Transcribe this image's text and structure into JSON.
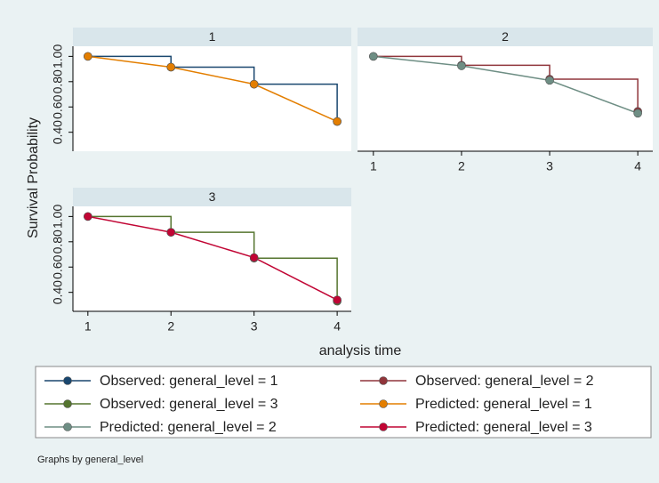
{
  "y_label": "Survival Probability",
  "x_label": "analysis time",
  "note": "Graphs by general_level",
  "chart_data": [
    {
      "type": "line",
      "title": "1",
      "x": [
        1,
        2,
        3,
        4
      ],
      "xlim": [
        0.82,
        4.17
      ],
      "ylim": [
        0.25,
        1.08
      ],
      "yticks": [
        {
          "value": 0.4,
          "label": "0.40"
        },
        {
          "value": 0.6,
          "label": "0.60"
        },
        {
          "value": 0.8,
          "label": "0.80"
        },
        {
          "value": 1.0,
          "label": "1.00"
        }
      ],
      "series": [
        {
          "name": "Observed: general_level = 1",
          "color": "#1a476f",
          "drawstyle": "steps-post",
          "values": [
            1.0,
            0.915,
            0.78,
            0.485
          ]
        },
        {
          "name": "Predicted: general_level = 1",
          "color": "#e37e00",
          "drawstyle": "linear",
          "values": [
            1.0,
            0.915,
            0.78,
            0.485
          ]
        }
      ]
    },
    {
      "type": "line",
      "title": "2",
      "x": [
        1,
        2,
        3,
        4
      ],
      "xlim": [
        0.82,
        4.17
      ],
      "ylim": [
        0.25,
        1.08
      ],
      "xticks": [
        1,
        2,
        3,
        4
      ],
      "series": [
        {
          "name": "Observed: general_level = 2",
          "color": "#90353b",
          "drawstyle": "steps-post",
          "values": [
            1.0,
            0.93,
            0.82,
            0.565
          ]
        },
        {
          "name": "Predicted: general_level = 2",
          "color": "#6e8e84",
          "drawstyle": "linear",
          "values": [
            1.0,
            0.925,
            0.81,
            0.55
          ]
        }
      ]
    },
    {
      "type": "line",
      "title": "3",
      "x": [
        1,
        2,
        3,
        4
      ],
      "xlim": [
        0.82,
        4.17
      ],
      "ylim": [
        0.25,
        1.08
      ],
      "xticks": [
        1,
        2,
        3,
        4
      ],
      "yticks": [
        {
          "value": 0.4,
          "label": "0.40"
        },
        {
          "value": 0.6,
          "label": "0.60"
        },
        {
          "value": 0.8,
          "label": "0.80"
        },
        {
          "value": 1.0,
          "label": "1.00"
        }
      ],
      "series": [
        {
          "name": "Observed: general_level = 3",
          "color": "#55752f",
          "drawstyle": "steps-post",
          "values": [
            1.0,
            0.875,
            0.67,
            0.33
          ]
        },
        {
          "name": "Predicted: general_level = 3",
          "color": "#c10534",
          "drawstyle": "linear",
          "values": [
            1.0,
            0.875,
            0.675,
            0.34
          ]
        }
      ]
    }
  ]
}
